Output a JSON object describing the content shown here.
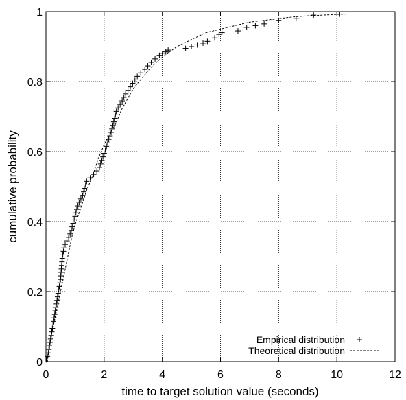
{
  "chart_data": {
    "type": "scatter",
    "title": "",
    "xlabel": "time to target solution value (seconds)",
    "ylabel": "cumulative probability",
    "xlim": [
      0,
      12
    ],
    "ylim": [
      0,
      1
    ],
    "x_ticks": [
      "0",
      "2",
      "4",
      "6",
      "8",
      "10",
      "12"
    ],
    "y_ticks": [
      "0",
      "0.2",
      "0.4",
      "0.6",
      "0.8",
      "1"
    ],
    "grid": true,
    "legend_position": "bottom-right",
    "series": [
      {
        "name": "Empirical distribution",
        "marker": "+",
        "points": [
          [
            0.02,
            0.005
          ],
          [
            0.05,
            0.015
          ],
          [
            0.08,
            0.025
          ],
          [
            0.1,
            0.035
          ],
          [
            0.12,
            0.045
          ],
          [
            0.14,
            0.055
          ],
          [
            0.16,
            0.065
          ],
          [
            0.18,
            0.075
          ],
          [
            0.2,
            0.085
          ],
          [
            0.22,
            0.095
          ],
          [
            0.24,
            0.105
          ],
          [
            0.26,
            0.115
          ],
          [
            0.28,
            0.125
          ],
          [
            0.3,
            0.135
          ],
          [
            0.32,
            0.145
          ],
          [
            0.34,
            0.155
          ],
          [
            0.36,
            0.165
          ],
          [
            0.38,
            0.175
          ],
          [
            0.4,
            0.185
          ],
          [
            0.42,
            0.195
          ],
          [
            0.44,
            0.205
          ],
          [
            0.46,
            0.215
          ],
          [
            0.48,
            0.225
          ],
          [
            0.5,
            0.235
          ],
          [
            0.51,
            0.245
          ],
          [
            0.52,
            0.255
          ],
          [
            0.53,
            0.265
          ],
          [
            0.54,
            0.275
          ],
          [
            0.55,
            0.285
          ],
          [
            0.56,
            0.295
          ],
          [
            0.58,
            0.305
          ],
          [
            0.6,
            0.315
          ],
          [
            0.62,
            0.325
          ],
          [
            0.66,
            0.335
          ],
          [
            0.72,
            0.345
          ],
          [
            0.78,
            0.355
          ],
          [
            0.83,
            0.365
          ],
          [
            0.87,
            0.375
          ],
          [
            0.9,
            0.385
          ],
          [
            0.93,
            0.395
          ],
          [
            0.97,
            0.405
          ],
          [
            1.0,
            0.415
          ],
          [
            1.03,
            0.425
          ],
          [
            1.06,
            0.435
          ],
          [
            1.1,
            0.445
          ],
          [
            1.14,
            0.455
          ],
          [
            1.2,
            0.465
          ],
          [
            1.26,
            0.475
          ],
          [
            1.3,
            0.485
          ],
          [
            1.32,
            0.495
          ],
          [
            1.36,
            0.505
          ],
          [
            1.4,
            0.515
          ],
          [
            1.52,
            0.525
          ],
          [
            1.64,
            0.535
          ],
          [
            1.75,
            0.545
          ],
          [
            1.84,
            0.555
          ],
          [
            1.88,
            0.565
          ],
          [
            1.92,
            0.575
          ],
          [
            1.96,
            0.585
          ],
          [
            2.0,
            0.595
          ],
          [
            2.04,
            0.605
          ],
          [
            2.08,
            0.615
          ],
          [
            2.12,
            0.625
          ],
          [
            2.16,
            0.635
          ],
          [
            2.2,
            0.645
          ],
          [
            2.24,
            0.655
          ],
          [
            2.27,
            0.665
          ],
          [
            2.3,
            0.675
          ],
          [
            2.33,
            0.685
          ],
          [
            2.36,
            0.695
          ],
          [
            2.39,
            0.705
          ],
          [
            2.42,
            0.715
          ],
          [
            2.48,
            0.725
          ],
          [
            2.55,
            0.735
          ],
          [
            2.62,
            0.745
          ],
          [
            2.68,
            0.755
          ],
          [
            2.74,
            0.765
          ],
          [
            2.82,
            0.775
          ],
          [
            2.9,
            0.785
          ],
          [
            2.98,
            0.795
          ],
          [
            3.06,
            0.805
          ],
          [
            3.14,
            0.815
          ],
          [
            3.26,
            0.825
          ],
          [
            3.4,
            0.835
          ],
          [
            3.5,
            0.845
          ],
          [
            3.62,
            0.855
          ],
          [
            3.75,
            0.865
          ],
          [
            3.9,
            0.875
          ],
          [
            4.0,
            0.88
          ],
          [
            4.12,
            0.885
          ],
          [
            4.2,
            0.89
          ],
          [
            4.8,
            0.895
          ],
          [
            5.0,
            0.9
          ],
          [
            5.2,
            0.905
          ],
          [
            5.4,
            0.91
          ],
          [
            5.55,
            0.915
          ],
          [
            5.8,
            0.925
          ],
          [
            5.95,
            0.935
          ],
          [
            6.05,
            0.94
          ],
          [
            6.6,
            0.945
          ],
          [
            6.9,
            0.955
          ],
          [
            7.2,
            0.96
          ],
          [
            7.5,
            0.965
          ],
          [
            8.0,
            0.975
          ],
          [
            8.6,
            0.98
          ],
          [
            9.2,
            0.99
          ],
          [
            10.1,
            0.993
          ]
        ]
      },
      {
        "name": "Theoretical distribution",
        "line": "dashed",
        "points": [
          [
            0.05,
            0.0
          ],
          [
            0.1,
            0.03
          ],
          [
            0.2,
            0.08
          ],
          [
            0.3,
            0.12
          ],
          [
            0.4,
            0.16
          ],
          [
            0.5,
            0.2
          ],
          [
            0.6,
            0.24
          ],
          [
            0.7,
            0.28
          ],
          [
            0.8,
            0.32
          ],
          [
            0.9,
            0.36
          ],
          [
            1.0,
            0.39
          ],
          [
            1.2,
            0.44
          ],
          [
            1.4,
            0.49
          ],
          [
            1.6,
            0.53
          ],
          [
            1.8,
            0.58
          ],
          [
            2.0,
            0.62
          ],
          [
            2.2,
            0.65
          ],
          [
            2.4,
            0.68
          ],
          [
            2.6,
            0.72
          ],
          [
            2.8,
            0.75
          ],
          [
            3.0,
            0.78
          ],
          [
            3.3,
            0.81
          ],
          [
            3.6,
            0.84
          ],
          [
            4.0,
            0.87
          ],
          [
            4.5,
            0.9
          ],
          [
            5.0,
            0.92
          ],
          [
            5.5,
            0.94
          ],
          [
            6.0,
            0.95
          ],
          [
            6.5,
            0.96
          ],
          [
            7.0,
            0.97
          ],
          [
            7.5,
            0.975
          ],
          [
            8.0,
            0.98
          ],
          [
            8.5,
            0.985
          ],
          [
            9.0,
            0.988
          ],
          [
            9.5,
            0.99
          ],
          [
            10.0,
            0.992
          ],
          [
            10.3,
            0.993
          ]
        ]
      }
    ]
  }
}
